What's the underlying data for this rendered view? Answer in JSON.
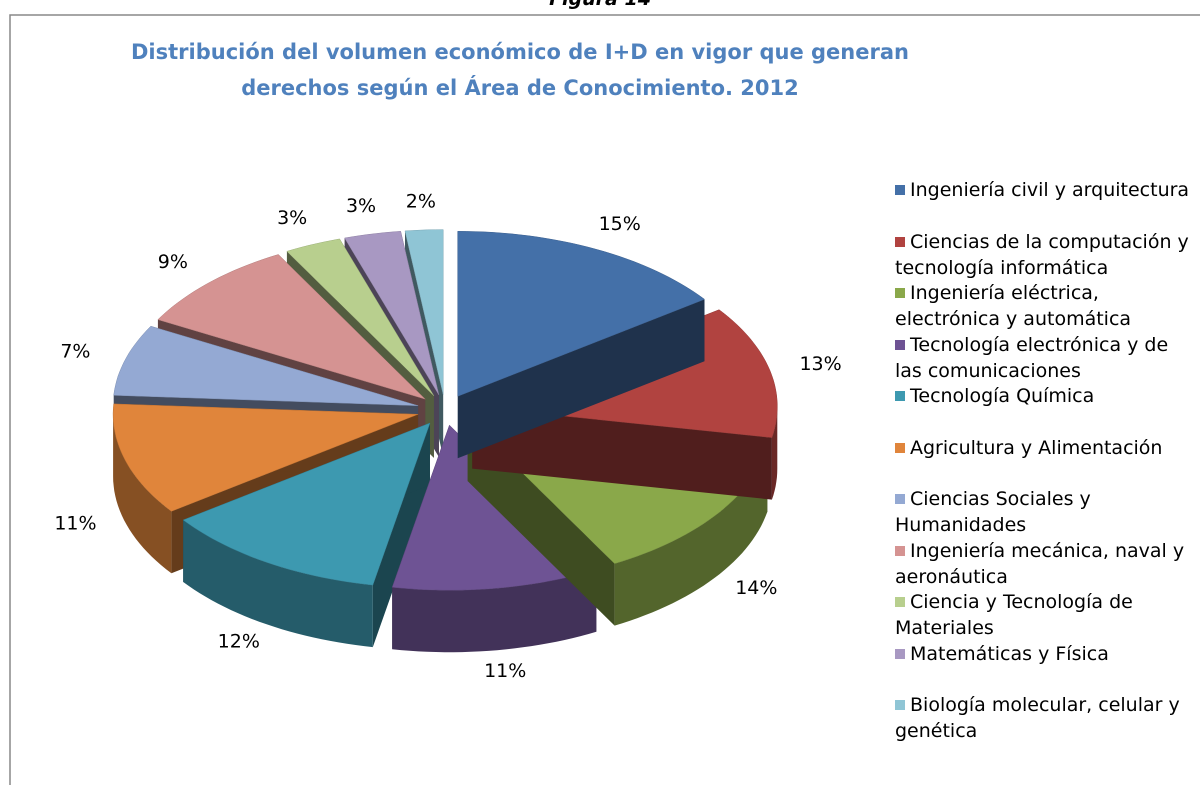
{
  "figure_label": "Figura 14",
  "chart_data": {
    "type": "pie3d",
    "title": "Distribución del volumen económico de I+D en vigor que generan derechos según el Área de Conocimiento. 2012",
    "categories": [
      "Ingeniería civil y arquitectura",
      "Ciencias de la computación y tecnología informática",
      "Ingeniería eléctrica, electrónica y automática",
      "Tecnología electrónica y de las comunicaciones",
      "Tecnología Química",
      "Agricultura y Alimentación",
      "Ciencias Sociales y Humanidades",
      "Ingeniería mecánica, naval y aeronáutica",
      "Ciencia y Tecnología de Materiales",
      "Matemáticas y Física",
      "Biología molecular, celular y genética"
    ],
    "values": [
      15,
      13,
      14,
      11,
      12,
      11,
      7,
      9,
      3,
      3,
      2
    ],
    "value_labels": [
      "15%",
      "13%",
      "14%",
      "11%",
      "12%",
      "11%",
      "7%",
      "9%",
      "3%",
      "3%",
      "2%"
    ],
    "colors": [
      "#4470a8",
      "#b14340",
      "#8aa84a",
      "#6e5394",
      "#3d99b0",
      "#e0853b",
      "#94a9d3",
      "#d59392",
      "#b8cf8e",
      "#a898c2",
      "#8fc5d5"
    ],
    "legend": "right"
  }
}
